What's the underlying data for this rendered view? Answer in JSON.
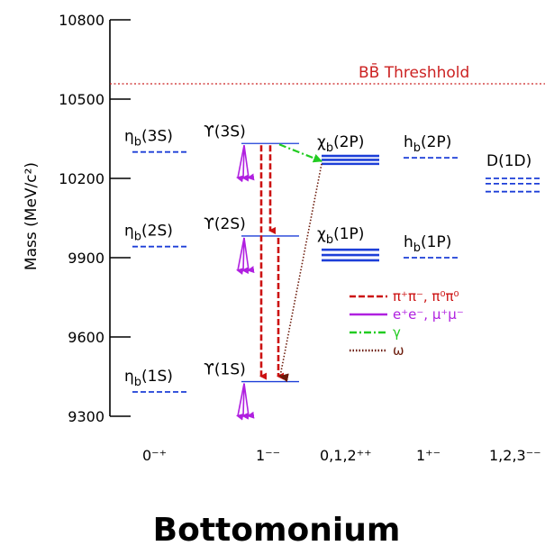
{
  "title": "Bottomonium",
  "y_axis": {
    "label": "Mass (MeV/c²)",
    "ticks": [
      9300,
      9600,
      9900,
      10200,
      10500,
      10800
    ],
    "range": [
      9300,
      10800
    ]
  },
  "threshold": {
    "label": "BB̄ Threshhold",
    "mass": 10558,
    "color": "#cc2222"
  },
  "jpc_labels": [
    "0⁻⁺",
    "1⁻⁻",
    "0,1,2⁺⁺",
    "1⁺⁻",
    "1,2,3⁻⁻"
  ],
  "states": {
    "etab_3S": {
      "label": "ηb(3S)",
      "mass": 10300,
      "style": "dashed",
      "color": "#1d3fd8"
    },
    "etab_2S": {
      "label": "ηb(2S)",
      "mass": 9942,
      "style": "dashed",
      "color": "#1d3fd8"
    },
    "etab_1S": {
      "label": "ηb(1S)",
      "mass": 9392,
      "style": "dashed",
      "color": "#1d3fd8"
    },
    "ups_3S": {
      "label": "ϒ(3S)",
      "mass": 10332,
      "style": "solid",
      "color": "#1d3fd8"
    },
    "ups_2S": {
      "label": "ϒ(2S)",
      "mass": 9982,
      "style": "solid",
      "color": "#1d3fd8"
    },
    "ups_1S": {
      "label": "ϒ(1S)",
      "mass": 9431,
      "style": "solid",
      "color": "#1d3fd8"
    },
    "chib_2P": {
      "label": "χb(2P)",
      "masses": [
        10255,
        10270,
        10285
      ],
      "style": "solid",
      "color": "#1d3fd8"
    },
    "chib_1P": {
      "label": "χb(1P)",
      "masses": [
        9890,
        9910,
        9930
      ],
      "style": "solid",
      "color": "#1d3fd8"
    },
    "hb_2P": {
      "label": "hb(2P)",
      "mass": 10278,
      "style": "dashed",
      "color": "#1d3fd8"
    },
    "hb_1P": {
      "label": "hb(1P)",
      "mass": 9900,
      "style": "dashed",
      "color": "#1d3fd8"
    },
    "D_1D": {
      "label": "D(1D)",
      "masses": [
        10150,
        10180,
        10200
      ],
      "style": "dashed",
      "color": "#1d3fd8"
    }
  },
  "legend": [
    {
      "label": "π⁺π⁻, π⁰π⁰",
      "color": "#cc1111",
      "style": "dashed"
    },
    {
      "label": "e⁺e⁻, μ⁺μ⁻",
      "color": "#b020e0",
      "style": "solid"
    },
    {
      "label": "γ",
      "color": "#22cc22",
      "style": "dashdot"
    },
    {
      "label": "ω",
      "color": "#6b1a0a",
      "style": "dotted"
    }
  ]
}
